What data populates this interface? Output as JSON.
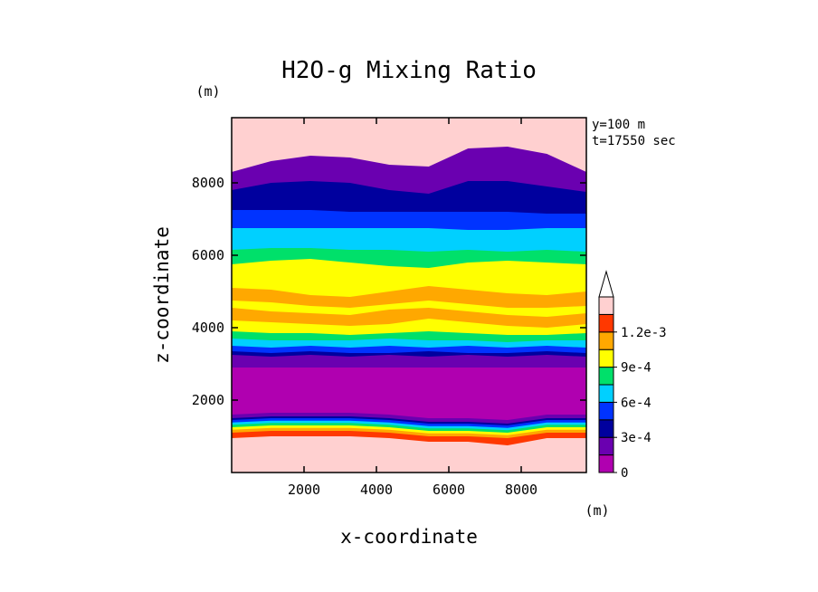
{
  "chart_data": {
    "type": "heatmap",
    "title": "H2O-g Mixing Ratio",
    "xlabel": "x-coordinate",
    "ylabel": "z-coordinate",
    "x_unit": "(m)",
    "y_unit": "(m)",
    "info_lines": [
      "y=100 m",
      "t=17550 sec"
    ],
    "xlim": [
      0,
      9800
    ],
    "ylim": [
      0,
      9800
    ],
    "x_ticks": [
      2000,
      4000,
      6000,
      8000
    ],
    "y_ticks": [
      2000,
      4000,
      6000,
      8000
    ],
    "x_tick_labels": [
      "2000",
      "4000",
      "6000",
      "8000"
    ],
    "y_tick_labels": [
      "2000",
      "4000",
      "6000",
      "8000"
    ],
    "colorbar": {
      "levels": [
        0,
        0.00015,
        0.0003,
        0.00045,
        0.0006,
        0.00075,
        0.0009,
        0.00105,
        0.0012,
        0.00135
      ],
      "colors": [
        "#b000b0",
        "#6a00b0",
        "#00009e",
        "#0033ff",
        "#00d0ff",
        "#00e06a",
        "#ffff00",
        "#ffa800",
        "#ff3800",
        "#ffd0d0",
        "#ffffff"
      ],
      "tick_values": [
        0,
        0.0003,
        0.0006,
        0.0009,
        0.0012
      ],
      "tick_labels": [
        "0",
        "3e-4",
        "6e-4",
        "9e-4",
        "1.2e-3"
      ],
      "extend": "max"
    },
    "bands": [
      {
        "bin": 1,
        "top": [
          8300,
          8600,
          8750,
          8700,
          8500,
          8450,
          8950,
          9000,
          8800,
          8300
        ]
      },
      {
        "bin": 2,
        "top": [
          7800,
          8000,
          8050,
          8000,
          7800,
          7700,
          8050,
          8050,
          7900,
          7750
        ]
      },
      {
        "bin": 3,
        "top": [
          7250,
          7250,
          7250,
          7200,
          7200,
          7200,
          7200,
          7200,
          7150,
          7150
        ]
      },
      {
        "bin": 4,
        "top": [
          6750,
          6750,
          6750,
          6750,
          6750,
          6750,
          6700,
          6700,
          6750,
          6750
        ]
      },
      {
        "bin": 5,
        "top": [
          6150,
          6200,
          6200,
          6150,
          6150,
          6100,
          6150,
          6100,
          6150,
          6100
        ]
      },
      {
        "bin": 6,
        "top": [
          5750,
          5850,
          5900,
          5800,
          5700,
          5650,
          5800,
          5850,
          5800,
          5750
        ]
      },
      {
        "bin": 7,
        "top": [
          5100,
          5050,
          4900,
          4850,
          5000,
          5150,
          5050,
          4950,
          4900,
          5000
        ]
      },
      {
        "bin": 6,
        "top": [
          4750,
          4700,
          4600,
          4550,
          4650,
          4750,
          4650,
          4550,
          4550,
          4600
        ]
      },
      {
        "bin": 7,
        "top": [
          4550,
          4450,
          4400,
          4350,
          4500,
          4550,
          4450,
          4350,
          4300,
          4400
        ]
      },
      {
        "bin": 6,
        "top": [
          4200,
          4150,
          4100,
          4050,
          4100,
          4250,
          4150,
          4050,
          4000,
          4100
        ]
      },
      {
        "bin": 5,
        "top": [
          3900,
          3850,
          3850,
          3800,
          3850,
          3900,
          3850,
          3800,
          3800,
          3850
        ]
      },
      {
        "bin": 4,
        "top": [
          3700,
          3650,
          3650,
          3650,
          3700,
          3650,
          3650,
          3600,
          3650,
          3650
        ]
      },
      {
        "bin": 3,
        "top": [
          3500,
          3450,
          3500,
          3450,
          3500,
          3450,
          3500,
          3450,
          3500,
          3450
        ]
      },
      {
        "bin": 2,
        "top": [
          3350,
          3300,
          3350,
          3300,
          3300,
          3350,
          3300,
          3300,
          3350,
          3300
        ]
      },
      {
        "bin": 1,
        "top": [
          3250,
          3200,
          3250,
          3200,
          3250,
          3200,
          3250,
          3200,
          3250,
          3200
        ]
      },
      {
        "bin": 0,
        "top": [
          2900,
          2900,
          2900,
          2900,
          2900,
          2900,
          2900,
          2900,
          2900,
          2900
        ]
      },
      {
        "bin": 1,
        "top": [
          1600,
          1650,
          1650,
          1650,
          1600,
          1500,
          1500,
          1450,
          1600,
          1600
        ]
      },
      {
        "bin": 2,
        "top": [
          1500,
          1550,
          1550,
          1550,
          1500,
          1400,
          1400,
          1350,
          1500,
          1500
        ]
      },
      {
        "bin": 3,
        "top": [
          1450,
          1500,
          1500,
          1500,
          1450,
          1350,
          1350,
          1300,
          1450,
          1450
        ]
      },
      {
        "bin": 4,
        "top": [
          1380,
          1430,
          1430,
          1430,
          1380,
          1280,
          1280,
          1230,
          1380,
          1380
        ]
      },
      {
        "bin": 5,
        "top": [
          1320,
          1370,
          1370,
          1370,
          1320,
          1220,
          1220,
          1170,
          1320,
          1320
        ]
      },
      {
        "bin": 6,
        "top": [
          1250,
          1300,
          1300,
          1300,
          1250,
          1150,
          1150,
          1100,
          1250,
          1250
        ]
      },
      {
        "bin": 7,
        "top": [
          1180,
          1230,
          1230,
          1230,
          1180,
          1080,
          1080,
          1030,
          1180,
          1180
        ]
      },
      {
        "bin": 8,
        "top": [
          1100,
          1150,
          1150,
          1150,
          1100,
          1000,
          1000,
          950,
          1100,
          1100
        ]
      },
      {
        "bin": 9,
        "top": [
          950,
          1000,
          1000,
          1000,
          950,
          850,
          850,
          750,
          950,
          950
        ]
      }
    ]
  }
}
